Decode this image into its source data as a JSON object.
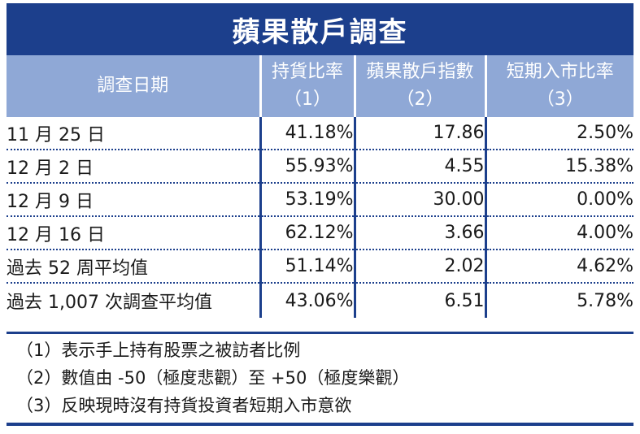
{
  "title": "蘋果散戶調查",
  "headers": {
    "date": "調查日期",
    "col1_line1": "持貨比率",
    "col1_line2": "（1）",
    "col2_line1": "蘋果散戶指數",
    "col2_line2": "（2）",
    "col3_line1": "短期入市比率",
    "col3_line2": "（3）"
  },
  "rows": [
    {
      "date": "11 月 25 日",
      "holding": "41.18%",
      "index": "17.86",
      "short_term": "2.50%"
    },
    {
      "date": "12 月 2 日",
      "holding": "55.93%",
      "index": "4.55",
      "short_term": "15.38%"
    },
    {
      "date": "12 月 9 日",
      "holding": "53.19%",
      "index": "30.00",
      "short_term": "0.00%"
    },
    {
      "date": "12 月 16 日",
      "holding": "62.12%",
      "index": "3.66",
      "short_term": "4.00%"
    },
    {
      "date": "過去 52 周平均值",
      "holding": "51.14%",
      "index": "2.02",
      "short_term": "4.62%"
    },
    {
      "date": "過去 1,007 次調查平均值",
      "holding": "43.06%",
      "index": "6.51",
      "short_term": "5.78%"
    }
  ],
  "notes": [
    "（1）表示手上持有股票之被訪者比例",
    "（2）數值由 -50（極度悲觀）至 +50（極度樂觀）",
    "（3）反映現時沒有持貨投資者短期入市意欲"
  ],
  "colors": {
    "title_bg": "#1c3f8c",
    "header_bg": "#8fa8d6"
  }
}
